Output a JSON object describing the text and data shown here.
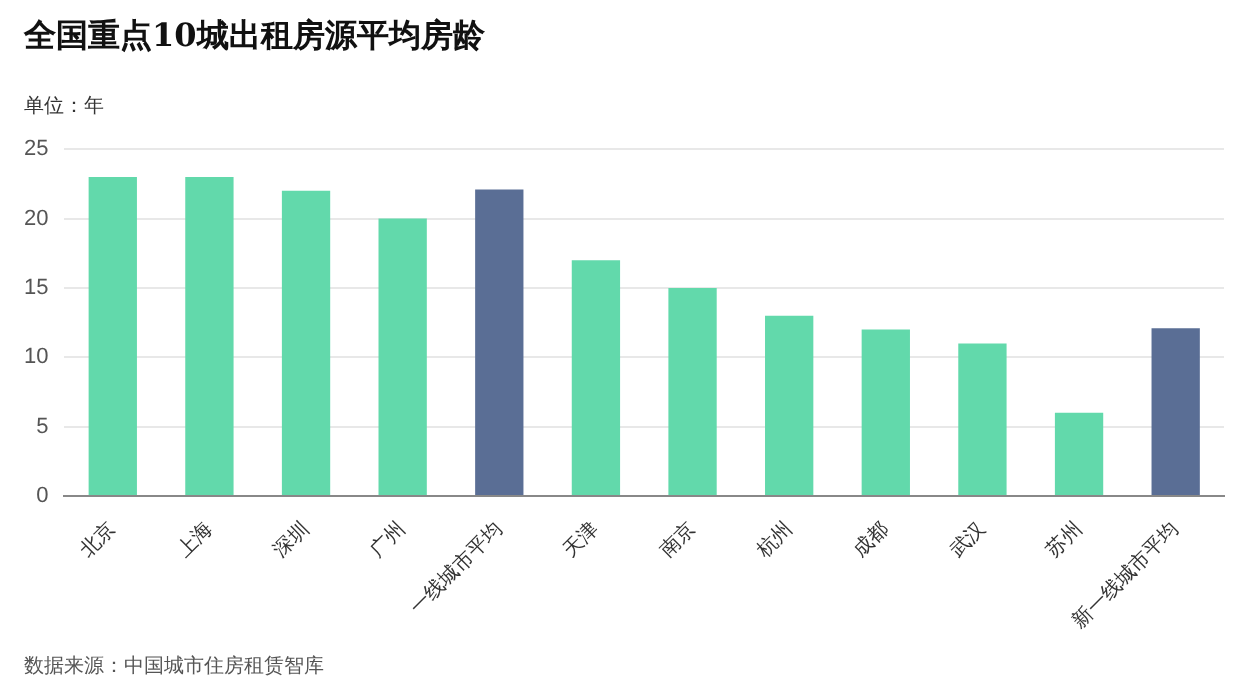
{
  "chart_data": {
    "type": "bar",
    "title": "全国重点10城出租房源平均房龄",
    "ylabel": "单位：年",
    "categories": [
      "北京",
      "上海",
      "深圳",
      "广州",
      "一线城市平均",
      "天津",
      "南京",
      "杭州",
      "成都",
      "武汉",
      "苏州",
      "新一线城市平均"
    ],
    "values": [
      23,
      23,
      22,
      20,
      22.1,
      17,
      15,
      13,
      12,
      11,
      6,
      12.1
    ],
    "colors": [
      "#62d9ab",
      "#62d9ab",
      "#62d9ab",
      "#62d9ab",
      "#5a6e95",
      "#62d9ab",
      "#62d9ab",
      "#62d9ab",
      "#62d9ab",
      "#62d9ab",
      "#62d9ab",
      "#5a6e95"
    ],
    "ylim": [
      0,
      25
    ],
    "yticks": [
      0,
      5,
      10,
      15,
      20,
      25
    ],
    "grid": "y",
    "legend": false,
    "annotations": [
      "数据来源：中国城市住房租赁智库"
    ]
  }
}
